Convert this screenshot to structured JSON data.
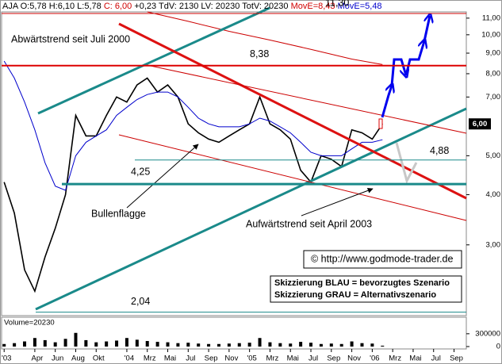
{
  "chart_data": [
    {
      "type": "line",
      "header": [
        {
          "text": "AJA O:5,78 H:6,10 L:5,78 ",
          "color": "#000000"
        },
        {
          "text": "C: 6,00",
          "color": "#d00000"
        },
        {
          "text": " +0,23 TdV: 2130 LV: 20230 TotV: 20230 ",
          "color": "#000000"
        },
        {
          "text": "MovE=8,43",
          "color": "#d00000"
        },
        {
          "text": " MovE=5,48",
          "color": "#0000cc"
        }
      ],
      "log_y": true,
      "xlim": [
        -0.25,
        45.2
      ],
      "ylim": [
        2.0,
        11.4
      ],
      "xticks": [
        {
          "value": 0,
          "label": "'03"
        },
        {
          "value": 3,
          "label": "Apr"
        },
        {
          "value": 5,
          "label": "Jun"
        },
        {
          "value": 7,
          "label": "Aug"
        },
        {
          "value": 9,
          "label": "Okt"
        },
        {
          "value": 12,
          "label": "'04"
        },
        {
          "value": 14,
          "label": "Mrz"
        },
        {
          "value": 16,
          "label": "Mai"
        },
        {
          "value": 18,
          "label": "Jul"
        },
        {
          "value": 20,
          "label": "Sep"
        },
        {
          "value": 22,
          "label": "Nov"
        },
        {
          "value": 24,
          "label": "'05"
        },
        {
          "value": 26,
          "label": "Mrz"
        },
        {
          "value": 28,
          "label": "Mai"
        },
        {
          "value": 30,
          "label": "Jul"
        },
        {
          "value": 32,
          "label": "Sep"
        },
        {
          "value": 34,
          "label": "Nov"
        },
        {
          "value": 36,
          "label": "'06"
        },
        {
          "value": 38,
          "label": "Mrz"
        },
        {
          "value": 40,
          "label": "Mai"
        },
        {
          "value": 42,
          "label": "Jul"
        },
        {
          "value": 44,
          "label": "Sep"
        }
      ],
      "yticks": [
        {
          "value": 3,
          "label": "3,00"
        },
        {
          "value": 4,
          "label": "4,00"
        },
        {
          "value": 5,
          "label": "5,00"
        },
        {
          "value": 7,
          "label": "7,00"
        },
        {
          "value": 8,
          "label": "8,00"
        },
        {
          "value": 9,
          "label": "9,00"
        },
        {
          "value": 10,
          "label": "10,00"
        },
        {
          "value": 11,
          "label": "11,00"
        }
      ],
      "x": [
        0,
        1,
        2,
        3,
        4,
        5,
        6,
        7,
        8,
        9,
        10,
        11,
        12,
        13,
        14,
        15,
        16,
        17,
        18,
        19,
        20,
        21,
        22,
        23,
        24,
        25,
        26,
        27,
        28,
        29,
        30,
        31,
        32,
        33,
        34,
        35,
        36,
        37
      ],
      "series": [
        {
          "color": "#000000",
          "values": [
            4.3,
            3.6,
            2.6,
            2.3,
            2.8,
            3.3,
            4.0,
            6.3,
            5.6,
            5.6,
            6.3,
            7.0,
            6.8,
            7.5,
            7.8,
            7.2,
            7.5,
            7.0,
            6.0,
            5.7,
            5.5,
            5.4,
            5.6,
            5.8,
            6.0,
            7.0,
            6.0,
            5.8,
            5.5,
            4.6,
            4.3,
            5.0,
            4.9,
            4.7,
            5.8,
            5.7,
            5.5,
            6.0
          ]
        },
        {
          "color": "#0000cc",
          "x": [
            0,
            1,
            2,
            3,
            4,
            5,
            6,
            7,
            8,
            9,
            10,
            11,
            12,
            13,
            14,
            15,
            16,
            17,
            18,
            19,
            20,
            21,
            22,
            23,
            24,
            25,
            26,
            27,
            28,
            29,
            30,
            31,
            32,
            33,
            34,
            35,
            36,
            37
          ],
          "values": [
            8.6,
            7.8,
            6.8,
            5.8,
            4.8,
            4.2,
            4.1,
            5.0,
            5.4,
            5.6,
            5.8,
            6.3,
            6.6,
            6.9,
            7.1,
            7.2,
            7.2,
            7.0,
            6.6,
            6.2,
            6.0,
            5.9,
            5.9,
            5.9,
            6.0,
            6.2,
            6.1,
            5.9,
            5.7,
            5.4,
            5.1,
            5.0,
            5.0,
            5.0,
            5.2,
            5.4,
            5.4,
            5.48
          ]
        },
        {
          "color": "#cc0000",
          "x": [
            14,
            18,
            22,
            26,
            30,
            34,
            37
          ],
          "values": [
            11.4,
            10.8,
            10.2,
            9.7,
            9.2,
            8.7,
            8.43
          ]
        }
      ],
      "last_price": {
        "value": 6.0,
        "label": "6,00"
      },
      "levels": [
        {
          "value": 11.3,
          "label": "11,30",
          "color": "#cc0000"
        },
        {
          "value": 8.38,
          "label": "8,38",
          "color": "#dd0000"
        },
        {
          "value": 4.88,
          "label": "4,88",
          "color": "#1a8a8a"
        },
        {
          "value": 4.25,
          "label": "4,25",
          "color": "#1a8a8a"
        },
        {
          "value": 2.04,
          "label": "2,04",
          "color": "#1a8a8a"
        }
      ],
      "annotations": [
        "Abwärtstrend seit Juli 2000",
        "Bullenflagge",
        "Aufwärtstrend seit April 2003",
        "© http://www.godmode-trader.de",
        "Skizzierung BLAU = bevorzugtes Szenario",
        "Skizzierung GRAU = Alternativszenario"
      ]
    },
    {
      "type": "bar",
      "title": "Volume=20230",
      "color": "#000000",
      "ylim": [
        0,
        650000
      ],
      "yticks": [
        0,
        300000
      ],
      "x": [
        0,
        1,
        2,
        3,
        4,
        5,
        6,
        7,
        8,
        9,
        10,
        11,
        12,
        13,
        14,
        15,
        16,
        17,
        18,
        19,
        20,
        21,
        22,
        23,
        24,
        25,
        26,
        27,
        28,
        29,
        30,
        31,
        32,
        33,
        34,
        35,
        36,
        37
      ],
      "values": [
        60000,
        80000,
        120000,
        200000,
        150000,
        100000,
        180000,
        320000,
        150000,
        100000,
        120000,
        140000,
        200000,
        160000,
        130000,
        110000,
        100000,
        80000,
        90000,
        70000,
        60000,
        60000,
        70000,
        80000,
        90000,
        200000,
        100000,
        80000,
        70000,
        110000,
        90000,
        60000,
        70000,
        60000,
        120000,
        80000,
        70000,
        20230
      ]
    }
  ]
}
